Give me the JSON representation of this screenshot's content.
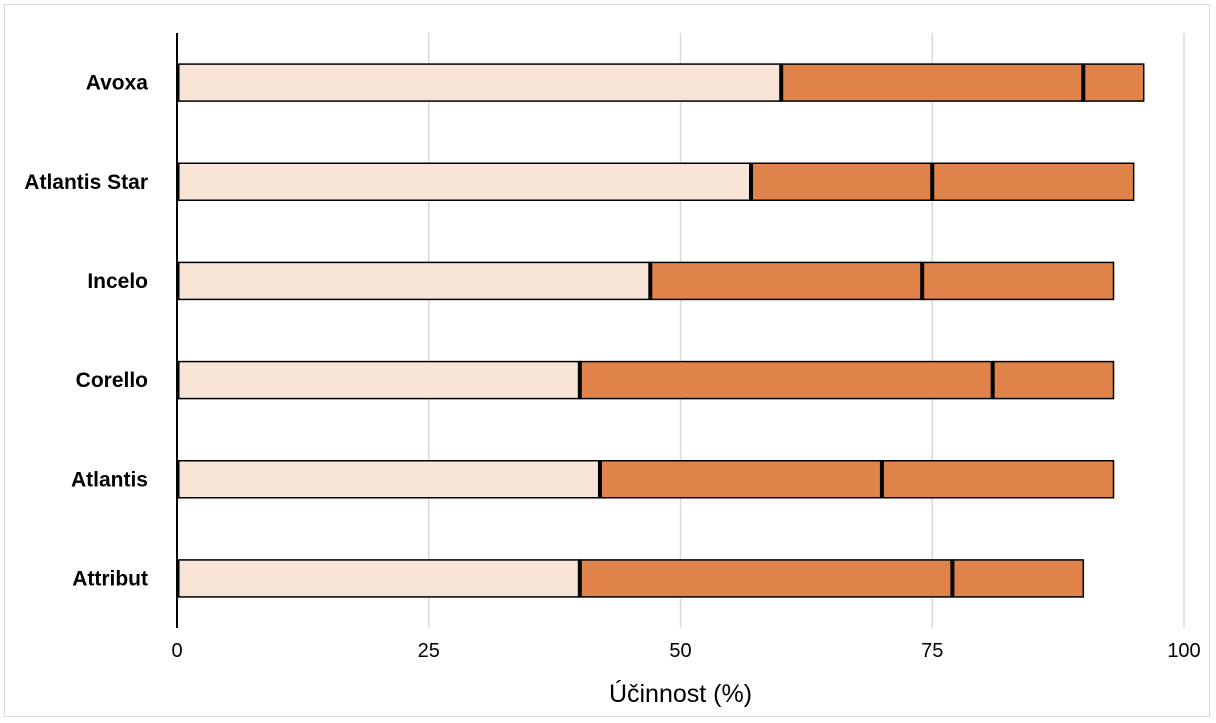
{
  "chart_data": {
    "type": "bar",
    "orientation": "horizontal",
    "stacked": true,
    "title": "",
    "xlabel": "Účinnost (%)",
    "ylabel": "",
    "xlim": [
      0,
      100
    ],
    "x_ticks": [
      0,
      25,
      50,
      75,
      100
    ],
    "x_tick_labels": [
      "0",
      "25",
      "50",
      "75",
      "100"
    ],
    "grid": "vertical",
    "legend": "none",
    "categories": [
      "Avoxa",
      "Atlantis Star",
      "Incelo",
      "Corello",
      "Atlantis",
      "Attribut"
    ],
    "series": [
      {
        "values": [
          60,
          57,
          47,
          40,
          42,
          40
        ],
        "color": "#f8e5d8"
      },
      {
        "values": [
          30,
          18,
          27,
          41,
          28,
          37
        ],
        "color": "#e0834a"
      },
      {
        "values": [
          6,
          20,
          19,
          12,
          23,
          13
        ],
        "color": "#e0834a"
      }
    ]
  }
}
